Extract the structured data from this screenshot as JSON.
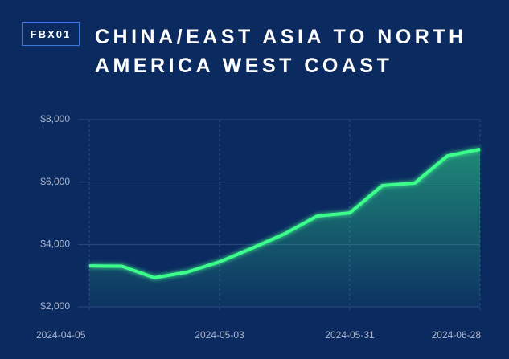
{
  "chart_data": {
    "type": "line",
    "badge": "FBX01",
    "title": "CHINA/EAST ASIA TO NORTH AMERICA WEST COAST",
    "x": [
      "2024-04-05",
      "2024-04-12",
      "2024-04-19",
      "2024-04-26",
      "2024-05-03",
      "2024-05-10",
      "2024-05-17",
      "2024-05-24",
      "2024-05-31",
      "2024-06-07",
      "2024-06-14",
      "2024-06-21",
      "2024-06-28"
    ],
    "values": [
      3310,
      3300,
      2930,
      3110,
      3440,
      3880,
      4340,
      4910,
      5010,
      5890,
      5970,
      6840,
      7050
    ],
    "color": "#3dff8c",
    "ylim": [
      2000,
      8000
    ],
    "yticks": [
      {
        "value": 2000,
        "label": "$2,000"
      },
      {
        "value": 4000,
        "label": "$4,000"
      },
      {
        "value": 6000,
        "label": "$6,000"
      },
      {
        "value": 8000,
        "label": "$8,000"
      }
    ],
    "xticks": [
      "2024-04-05",
      "2024-05-03",
      "2024-05-31",
      "2024-06-28"
    ],
    "grid": true
  }
}
